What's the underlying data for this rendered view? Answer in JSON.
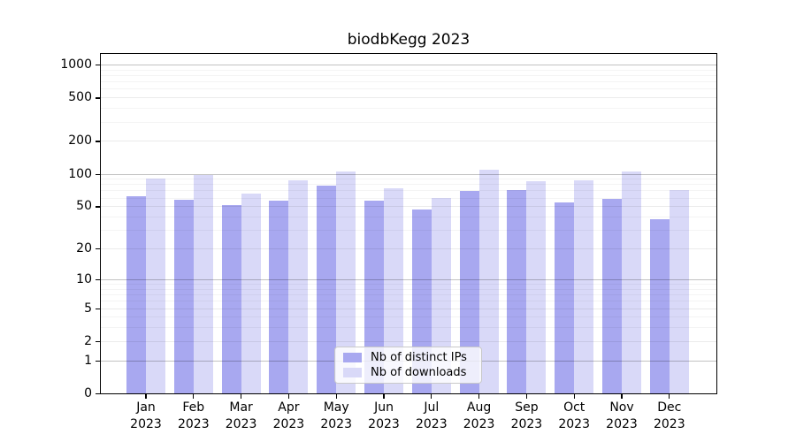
{
  "title": "biodbKegg 2023",
  "legend": {
    "items": [
      {
        "label": "Nb of distinct IPs",
        "color": "#a8a8f0"
      },
      {
        "label": "Nb of downloads",
        "color": "#d9d9f8"
      }
    ]
  },
  "colors": {
    "distinct_ips_bar": "#a8a8f0",
    "downloads_bar": "#d9d9f8",
    "axis": "#000000",
    "major_grid": "#c3c3c3"
  },
  "chart_data": {
    "type": "bar",
    "title": "biodbKegg 2023",
    "scale": "log1p",
    "categories": [
      "Jan",
      "Feb",
      "Mar",
      "Apr",
      "May",
      "Jun",
      "Jul",
      "Aug",
      "Sep",
      "Oct",
      "Nov",
      "Dec"
    ],
    "year_label": "2023",
    "series": [
      {
        "name": "Nb of distinct IPs",
        "color": "#a8a8f0",
        "values": [
          62,
          57,
          51,
          56,
          77,
          56,
          47,
          69,
          70,
          54,
          58,
          38
        ]
      },
      {
        "name": "Nb of downloads",
        "color": "#d9d9f8",
        "values": [
          90,
          97,
          66,
          87,
          104,
          74,
          60,
          109,
          86,
          87,
          105,
          71
        ]
      }
    ],
    "xlabel": "",
    "ylabel": "",
    "yticks": [
      0,
      1,
      2,
      5,
      10,
      20,
      50,
      100,
      200,
      500,
      1000
    ],
    "ylim": [
      0,
      1250
    ],
    "grid": true,
    "legend_position": "lower center"
  }
}
